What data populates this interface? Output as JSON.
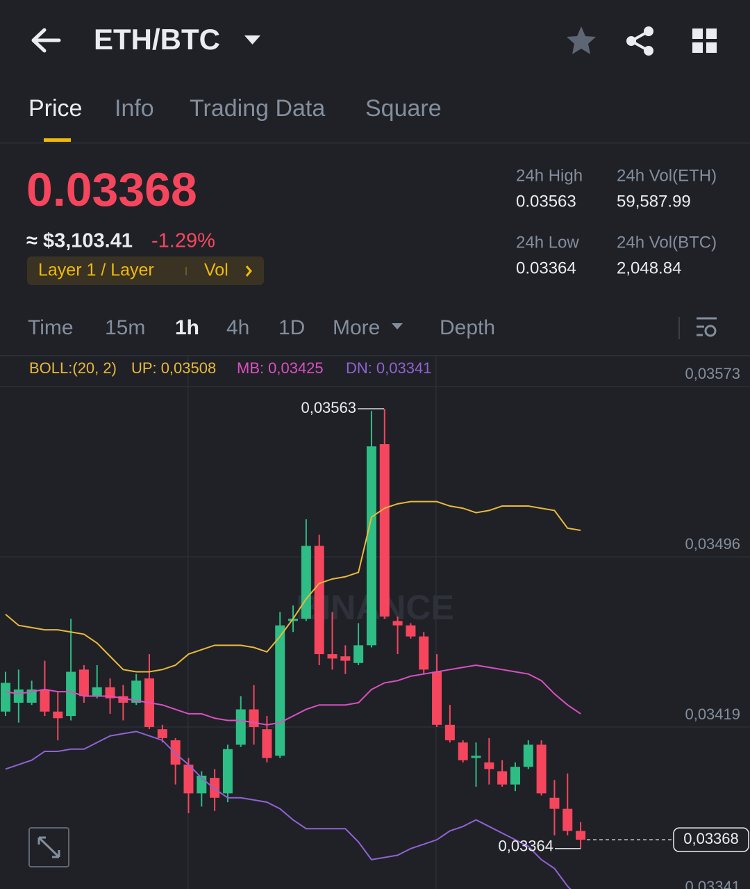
{
  "header": {
    "pair": "ETH/BTC"
  },
  "tabs": [
    "Price",
    "Info",
    "Trading Data",
    "Square"
  ],
  "price": {
    "last": "0.03368",
    "usd": "≈ $3,103.41",
    "change": "-1.29%",
    "tag": "Layer 1 / Layer",
    "tag_vol": "Vol"
  },
  "stats": [
    {
      "label": "24h High",
      "value": "0.03563"
    },
    {
      "label": "24h Vol(ETH)",
      "value": "59,587.99"
    },
    {
      "label": "24h Low",
      "value": "0.03364"
    },
    {
      "label": "24h Vol(BTC)",
      "value": "2,048.84"
    }
  ],
  "intervals": [
    "Time",
    "15m",
    "1h",
    "4h",
    "1D",
    "More",
    "Depth"
  ],
  "chart_data": {
    "type": "candlestick",
    "indicator": "BOLL:(20, 2)",
    "watermark": "BINANCE",
    "up_color": "#2ebd85",
    "down_color": "#f6465d",
    "ylim": [
      0.03341,
      0.03586
    ],
    "yticks": [
      {
        "value": 0.03573,
        "label": "0,03573"
      },
      {
        "value": 0.03496,
        "label": "0,03496"
      },
      {
        "value": 0.03419,
        "label": "0,03419"
      },
      {
        "value": 0.03341,
        "label": "0,03341"
      }
    ],
    "grid": true,
    "open": [
      0.03426,
      0.0343,
      0.0343,
      0.03436,
      0.03426,
      0.03424,
      0.03445,
      0.03433,
      0.03437,
      0.03433,
      0.0343,
      0.03441,
      0.03418,
      0.03413,
      0.03402,
      0.03389,
      0.03396,
      0.03389,
      0.03411,
      0.03427,
      0.03418,
      0.03406,
      0.03467,
      0.03468,
      0.03501,
      0.03452,
      0.03451,
      0.03448,
      0.03456,
      0.03547,
      0.03467,
      0.03465,
      0.0346,
      0.03444,
      0.0342,
      0.03412,
      0.03405,
      0.03403,
      0.03399,
      0.03393,
      0.03401,
      0.03411,
      0.03387,
      0.03382,
      0.03372
    ],
    "high": [
      0.03444,
      0.03445,
      0.0344,
      0.03449,
      0.03435,
      0.03468,
      0.03447,
      0.03447,
      0.03441,
      0.03438,
      0.03443,
      0.03452,
      0.0342,
      0.03414,
      0.03405,
      0.03399,
      0.034,
      0.03411,
      0.03433,
      0.03438,
      0.03424,
      0.03471,
      0.03474,
      0.03513,
      0.03506,
      0.03471,
      0.03456,
      0.03466,
      0.03562,
      0.03563,
      0.03469,
      0.03466,
      0.03462,
      0.03452,
      0.03429,
      0.03413,
      0.03412,
      0.03414,
      0.03404,
      0.03403,
      0.03413,
      0.03413,
      0.03395,
      0.03398,
      0.03376
    ],
    "low": [
      0.03424,
      0.03421,
      0.03429,
      0.03424,
      0.03413,
      0.03422,
      0.0343,
      0.03432,
      0.03425,
      0.03422,
      0.03429,
      0.03418,
      0.03412,
      0.03393,
      0.0338,
      0.03383,
      0.03381,
      0.03385,
      0.0341,
      0.03411,
      0.03403,
      0.03405,
      0.03462,
      0.03467,
      0.03447,
      0.03445,
      0.03443,
      0.03447,
      0.03455,
      0.03468,
      0.03452,
      0.03459,
      0.03443,
      0.03419,
      0.03412,
      0.03403,
      0.03392,
      0.03393,
      0.03392,
      0.0339,
      0.034,
      0.03388,
      0.0337,
      0.0337,
      0.03364
    ],
    "close": [
      0.03439,
      0.03436,
      0.03436,
      0.03426,
      0.03423,
      0.03444,
      0.03433,
      0.03437,
      0.03432,
      0.0343,
      0.0344,
      0.03419,
      0.03414,
      0.03402,
      0.03389,
      0.03397,
      0.03387,
      0.03409,
      0.03427,
      0.03419,
      0.03405,
      0.03465,
      0.03468,
      0.03501,
      0.03452,
      0.0345,
      0.03449,
      0.03456,
      0.03546,
      0.03469,
      0.03465,
      0.0346,
      0.03445,
      0.0342,
      0.03413,
      0.03404,
      0.03406,
      0.034,
      0.03393,
      0.03401,
      0.03411,
      0.03389,
      0.03382,
      0.03372,
      0.03368
    ],
    "series": [
      {
        "name": "UP:",
        "color": "#e9b93b",
        "value_label": "0,03508",
        "values": [
          0.0347,
          0.03465,
          0.03464,
          0.03463,
          0.03463,
          0.03462,
          0.03461,
          0.03457,
          0.03451,
          0.03445,
          0.03444,
          0.03444,
          0.03445,
          0.03447,
          0.03452,
          0.03454,
          0.03456,
          0.03456,
          0.03456,
          0.03455,
          0.03453,
          0.0346,
          0.03468,
          0.03477,
          0.03484,
          0.03486,
          0.03487,
          0.03489,
          0.03514,
          0.03518,
          0.0352,
          0.03521,
          0.03521,
          0.03521,
          0.03519,
          0.03518,
          0.03516,
          0.03517,
          0.03519,
          0.03519,
          0.03519,
          0.03518,
          0.03517,
          0.03509,
          0.03508
        ]
      },
      {
        "name": "MB:",
        "color": "#dc4fc0",
        "value_label": "0,03425",
        "values": [
          0.03435,
          0.03434,
          0.03435,
          0.03436,
          0.03435,
          0.03435,
          0.03433,
          0.03433,
          0.03433,
          0.03432,
          0.03431,
          0.0343,
          0.03429,
          0.03427,
          0.03425,
          0.03425,
          0.03423,
          0.03422,
          0.03422,
          0.03421,
          0.0342,
          0.03421,
          0.03424,
          0.03427,
          0.03429,
          0.03429,
          0.03429,
          0.0343,
          0.03436,
          0.03439,
          0.0344,
          0.03442,
          0.03443,
          0.03444,
          0.03445,
          0.03446,
          0.03447,
          0.03446,
          0.03445,
          0.03444,
          0.03443,
          0.0344,
          0.03434,
          0.03429,
          0.03425
        ]
      },
      {
        "name": "DN:",
        "color": "#9162d4",
        "value_label": "0,03341",
        "values": [
          0.034,
          0.03402,
          0.03404,
          0.03408,
          0.03408,
          0.03409,
          0.03409,
          0.03412,
          0.03415,
          0.03416,
          0.03417,
          0.03415,
          0.03413,
          0.03407,
          0.03402,
          0.03396,
          0.03391,
          0.03387,
          0.03387,
          0.03386,
          0.03385,
          0.03382,
          0.03377,
          0.03373,
          0.03373,
          0.03373,
          0.03373,
          0.03367,
          0.03359,
          0.0336,
          0.03361,
          0.03364,
          0.03366,
          0.03368,
          0.03372,
          0.03374,
          0.03377,
          0.03374,
          0.03371,
          0.03368,
          0.03365,
          0.03359,
          0.03355,
          0.03347,
          0.03341
        ]
      }
    ],
    "high_marker": {
      "value": 0.03563,
      "label": "0,03563"
    },
    "low_marker": {
      "value": 0.03364,
      "label": "0,03364"
    },
    "last_price": {
      "value": 0.03368,
      "label": "0,03368"
    }
  }
}
